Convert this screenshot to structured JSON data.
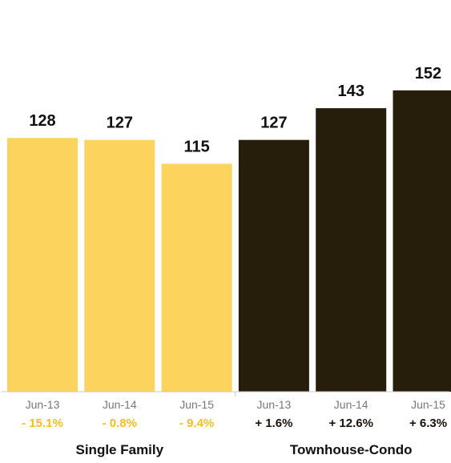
{
  "chart_data": {
    "type": "bar",
    "ylim": [
      0,
      160
    ],
    "grid": false,
    "groups": [
      {
        "name": "Single Family",
        "color": "#FCD35C",
        "change_color": "#F2BE22",
        "bars": [
          {
            "category": "Jun-13",
            "value": 128,
            "value_label": "128",
            "change": "- 15.1%"
          },
          {
            "category": "Jun-14",
            "value": 127,
            "value_label": "127",
            "change": "- 0.8%"
          },
          {
            "category": "Jun-15",
            "value": 115,
            "value_label": "115",
            "change": "- 9.4%"
          }
        ]
      },
      {
        "name": "Townhouse-Condo",
        "color": "#261D0A",
        "change_color": "#1A1206",
        "bars": [
          {
            "category": "Jun-13",
            "value": 127,
            "value_label": "127",
            "change": "+ 1.6%"
          },
          {
            "category": "Jun-14",
            "value": 143,
            "value_label": "143",
            "change": "+ 12.6%"
          },
          {
            "category": "Jun-15",
            "value": 152,
            "value_label": "152",
            "change": "+ 6.3%"
          }
        ]
      }
    ]
  }
}
